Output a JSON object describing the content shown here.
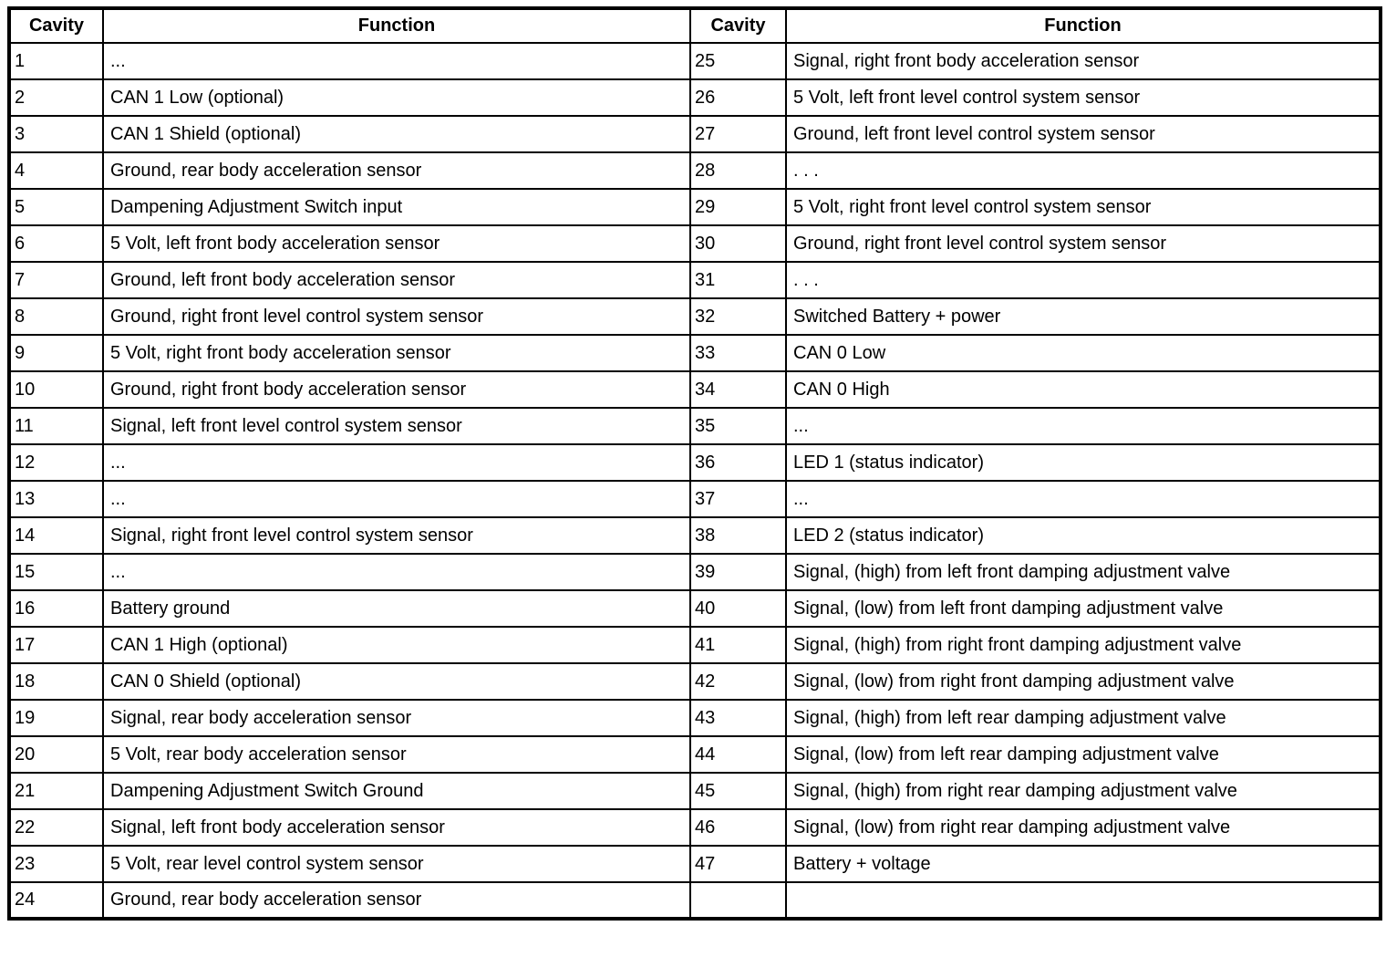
{
  "table": {
    "headers": {
      "cavity_left": "Cavity",
      "function_left": "Function",
      "cavity_right": "Cavity",
      "function_right": "Function"
    },
    "rows": [
      {
        "c1": "1",
        "f1": "...",
        "c2": "25",
        "f2": "Signal, right front body acceleration sensor"
      },
      {
        "c1": "2",
        "f1": "CAN 1 Low (optional)",
        "c2": "26",
        "f2": "5 Volt, left front level control system sensor"
      },
      {
        "c1": "3",
        "f1": "CAN 1 Shield (optional)",
        "c2": "27",
        "f2": "Ground, left front level control system sensor"
      },
      {
        "c1": "4",
        "f1": "Ground, rear body acceleration sensor",
        "c2": "28",
        "f2": ". . ."
      },
      {
        "c1": "5",
        "f1": "Dampening Adjustment Switch input",
        "c2": "29",
        "f2": "5 Volt, right front level control system sensor"
      },
      {
        "c1": "6",
        "f1": "5 Volt, left front body acceleration sensor",
        "c2": "30",
        "f2": "Ground, right front level control system sensor"
      },
      {
        "c1": "7",
        "f1": "Ground, left front body acceleration sensor",
        "c2": "31",
        "f2": ". . ."
      },
      {
        "c1": "8",
        "f1": "Ground, right front level control system sensor",
        "c2": "32",
        "f2": "Switched Battery + power"
      },
      {
        "c1": "9",
        "f1": "5 Volt, right front body acceleration sensor",
        "c2": "33",
        "f2": "CAN 0 Low"
      },
      {
        "c1": "10",
        "f1": "Ground, right front body acceleration sensor",
        "c2": "34",
        "f2": "CAN 0 High"
      },
      {
        "c1": "11",
        "f1": "Signal, left front level control system sensor",
        "c2": "35",
        "f2": "..."
      },
      {
        "c1": "12",
        "f1": "...",
        "c2": "36",
        "f2": "LED 1 (status indicator)"
      },
      {
        "c1": "13",
        "f1": "...",
        "c2": "37",
        "f2": "..."
      },
      {
        "c1": "14",
        "f1": "Signal, right front level control system sensor",
        "c2": "38",
        "f2": "LED 2 (status indicator)"
      },
      {
        "c1": "15",
        "f1": "...",
        "c2": "39",
        "f2": "Signal, (high) from left front damping adjustment valve"
      },
      {
        "c1": "16",
        "f1": "Battery ground",
        "c2": "40",
        "f2": "Signal, (low) from left front damping adjustment valve"
      },
      {
        "c1": "17",
        "f1": "CAN 1 High (optional)",
        "c2": "41",
        "f2": "Signal, (high) from right front damping adjustment valve"
      },
      {
        "c1": "18",
        "f1": "CAN 0 Shield (optional)",
        "c2": "42",
        "f2": "Signal, (low) from right front damping adjustment valve"
      },
      {
        "c1": "19",
        "f1": "Signal, rear body acceleration sensor",
        "c2": "43",
        "f2": "Signal, (high) from left rear damping adjustment valve"
      },
      {
        "c1": "20",
        "f1": "5 Volt, rear body acceleration sensor",
        "c2": "44",
        "f2": "Signal, (low) from left rear damping adjustment valve"
      },
      {
        "c1": "21",
        "f1": "Dampening Adjustment Switch Ground",
        "c2": "45",
        "f2": "Signal, (high) from right rear damping adjustment valve"
      },
      {
        "c1": "22",
        "f1": "Signal, left front body acceleration sensor",
        "c2": "46",
        "f2": "Signal, (low) from right rear damping adjustment valve"
      },
      {
        "c1": "23",
        "f1": "5 Volt, rear level control system sensor",
        "c2": "47",
        "f2": "Battery + voltage"
      },
      {
        "c1": "24",
        "f1": "Ground, rear body acceleration sensor",
        "c2": "",
        "f2": ""
      }
    ]
  },
  "colors": {
    "border": "#000000",
    "text": "#000000",
    "background": "#ffffff"
  }
}
